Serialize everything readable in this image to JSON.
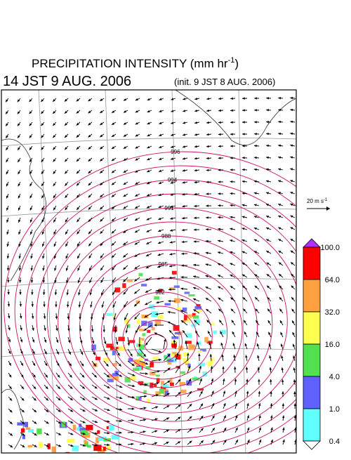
{
  "header": {
    "title": "PRECIPITATION INTENSITY (mm hr",
    "title_sup": "-1",
    "title_end": ")",
    "valid_time": "14 JST 9 AUG. 2006",
    "init_time": "(init. 9 JST 8 AUG. 2006)"
  },
  "map": {
    "isobar_labels": [
      996,
      994,
      991,
      988,
      985,
      982
    ],
    "isobar_color": "#d0106a",
    "grid_color": "#999999",
    "coast_color": "#333333"
  },
  "vector_key": {
    "label": "20 m s",
    "label_sup": "-1"
  },
  "legend": {
    "ticks": [
      {
        "value": 100,
        "label": "100.0"
      },
      {
        "value": 64,
        "label": "64.0"
      },
      {
        "value": 32,
        "label": "32.0"
      },
      {
        "value": 16,
        "label": "16.0"
      },
      {
        "value": 4,
        "label": "4.0"
      },
      {
        "value": 1,
        "label": "1.0"
      },
      {
        "value": 0.4,
        "label": "0.4"
      }
    ],
    "colors": [
      "#ff0000",
      "#ffa040",
      "#ffff50",
      "#50e050",
      "#6060ff",
      "#60ffff"
    ],
    "over_color": "#b030ff",
    "under_color": "#ffffff"
  }
}
